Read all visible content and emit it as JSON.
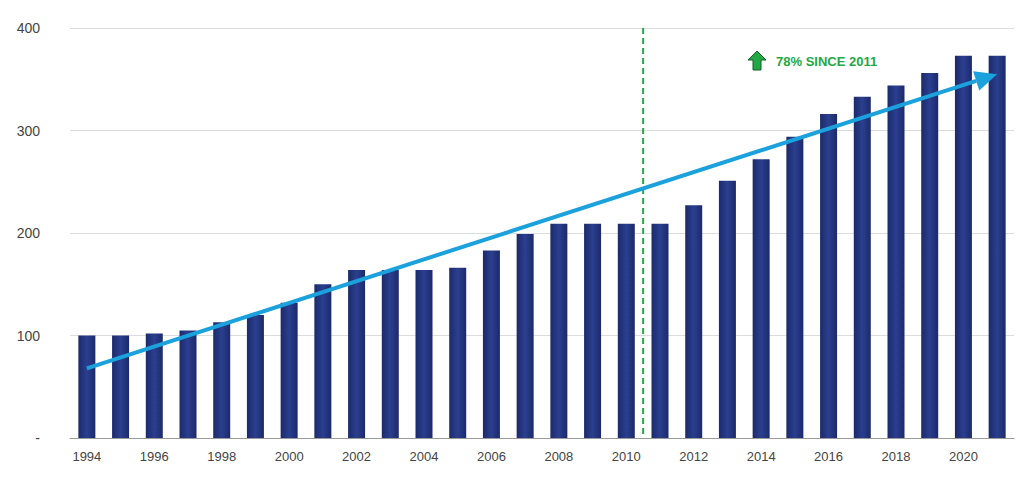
{
  "chart_data": {
    "type": "bar",
    "categories": [
      "1994",
      null,
      "1996",
      null,
      "1998",
      null,
      "2000",
      null,
      "2002",
      null,
      "2004",
      null,
      "2006",
      null,
      "2008",
      null,
      "2010",
      null,
      "2012",
      null,
      "2014",
      null,
      "2016",
      null,
      "2018",
      null,
      "2020",
      null
    ],
    "values": [
      100,
      100,
      102,
      105,
      113,
      120,
      132,
      150,
      164,
      164,
      164,
      166,
      183,
      199,
      209,
      209,
      209,
      209,
      227,
      251,
      272,
      294,
      316,
      333,
      344,
      356,
      373,
      373
    ],
    "color": "#1c2a6b",
    "ylim": [
      0,
      400
    ],
    "yticks": [
      {
        "value": 0,
        "label": "-"
      },
      100,
      200,
      300,
      400
    ],
    "grid": true,
    "data_labels": false,
    "annotations": [
      {
        "text": "78% SINCE 2011",
        "color": "#22a845"
      }
    ],
    "trend": {
      "start": 68,
      "end": 355,
      "color": "#1ba1dc"
    },
    "divider": {
      "after": "2010",
      "color": "#22a845"
    }
  }
}
